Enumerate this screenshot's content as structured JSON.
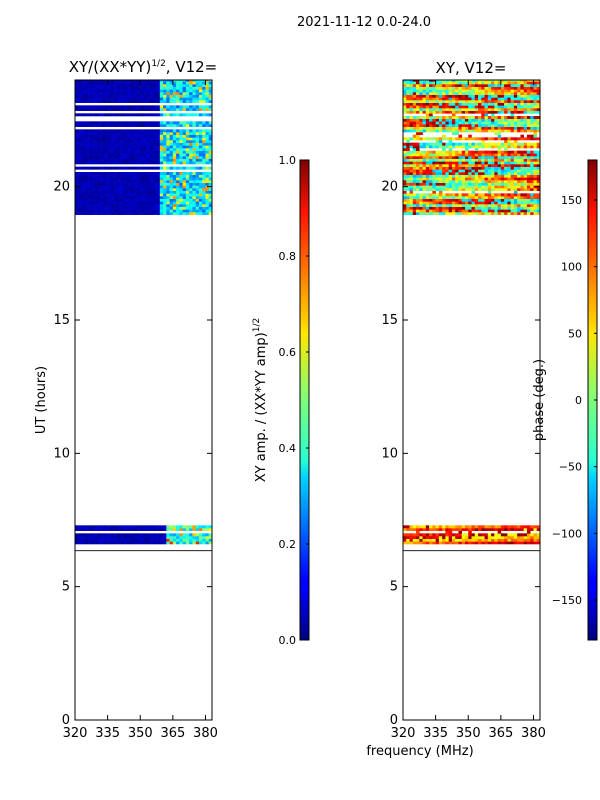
{
  "suptitle": "2021-11-12 0.0-24.0",
  "shared_xlabel": "frequency (MHz)",
  "chart_data": [
    {
      "type": "heatmap",
      "title": "XY/(XX*YY)",
      "title_sup": "1/2",
      "title_suffix": ", V12=",
      "xlabel": "",
      "ylabel": "UT (hours)",
      "xlim": [
        320,
        383
      ],
      "ylim": [
        0,
        24
      ],
      "xticks": [
        320,
        335,
        350,
        365,
        380
      ],
      "yticks": [
        0,
        5,
        10,
        15,
        20
      ],
      "cells_note_colormap": "jet",
      "data_bands": [
        {
          "y_start": 18.95,
          "y_end": 24.0,
          "background_value": 0.02,
          "active_x": [
            360,
            380
          ],
          "active_value": 0.45
        },
        {
          "y_start": 6.6,
          "y_end": 7.25,
          "background_value": 0.02,
          "active_x": [
            362,
            380
          ],
          "active_value": 0.55
        }
      ],
      "colorbar": {
        "label": "XY amp. / (XX*YY amp)",
        "label_sup": "1/2",
        "range": [
          0.0,
          1.0
        ],
        "ticks": [
          "0.0",
          "0.2",
          "0.4",
          "0.6",
          "0.8",
          "1.0"
        ],
        "tick_values": [
          0.0,
          0.2,
          0.4,
          0.6,
          0.8,
          1.0
        ]
      }
    },
    {
      "type": "heatmap",
      "title": "XY, V12=",
      "xlabel": "frequency (MHz)",
      "ylabel": "",
      "xlim": [
        320,
        383
      ],
      "ylim": [
        0,
        24
      ],
      "xticks": [
        320,
        335,
        350,
        365,
        380
      ],
      "yticks": [
        0,
        5,
        10,
        15,
        20
      ],
      "cells_note_colormap": "jet",
      "data_bands": [
        {
          "y_start": 18.95,
          "y_end": 24.0,
          "value_range": [
            -180,
            180
          ]
        },
        {
          "y_start": 6.6,
          "y_end": 7.25,
          "value_range": [
            -30,
            180
          ]
        }
      ],
      "colorbar": {
        "label": "phase (deg.)",
        "range": [
          -180,
          180
        ],
        "ticks": [
          "−150",
          "−100",
          "−50",
          "0",
          "50",
          "100",
          "150"
        ],
        "tick_values": [
          -150,
          -100,
          -50,
          0,
          50,
          100,
          150
        ]
      }
    }
  ]
}
